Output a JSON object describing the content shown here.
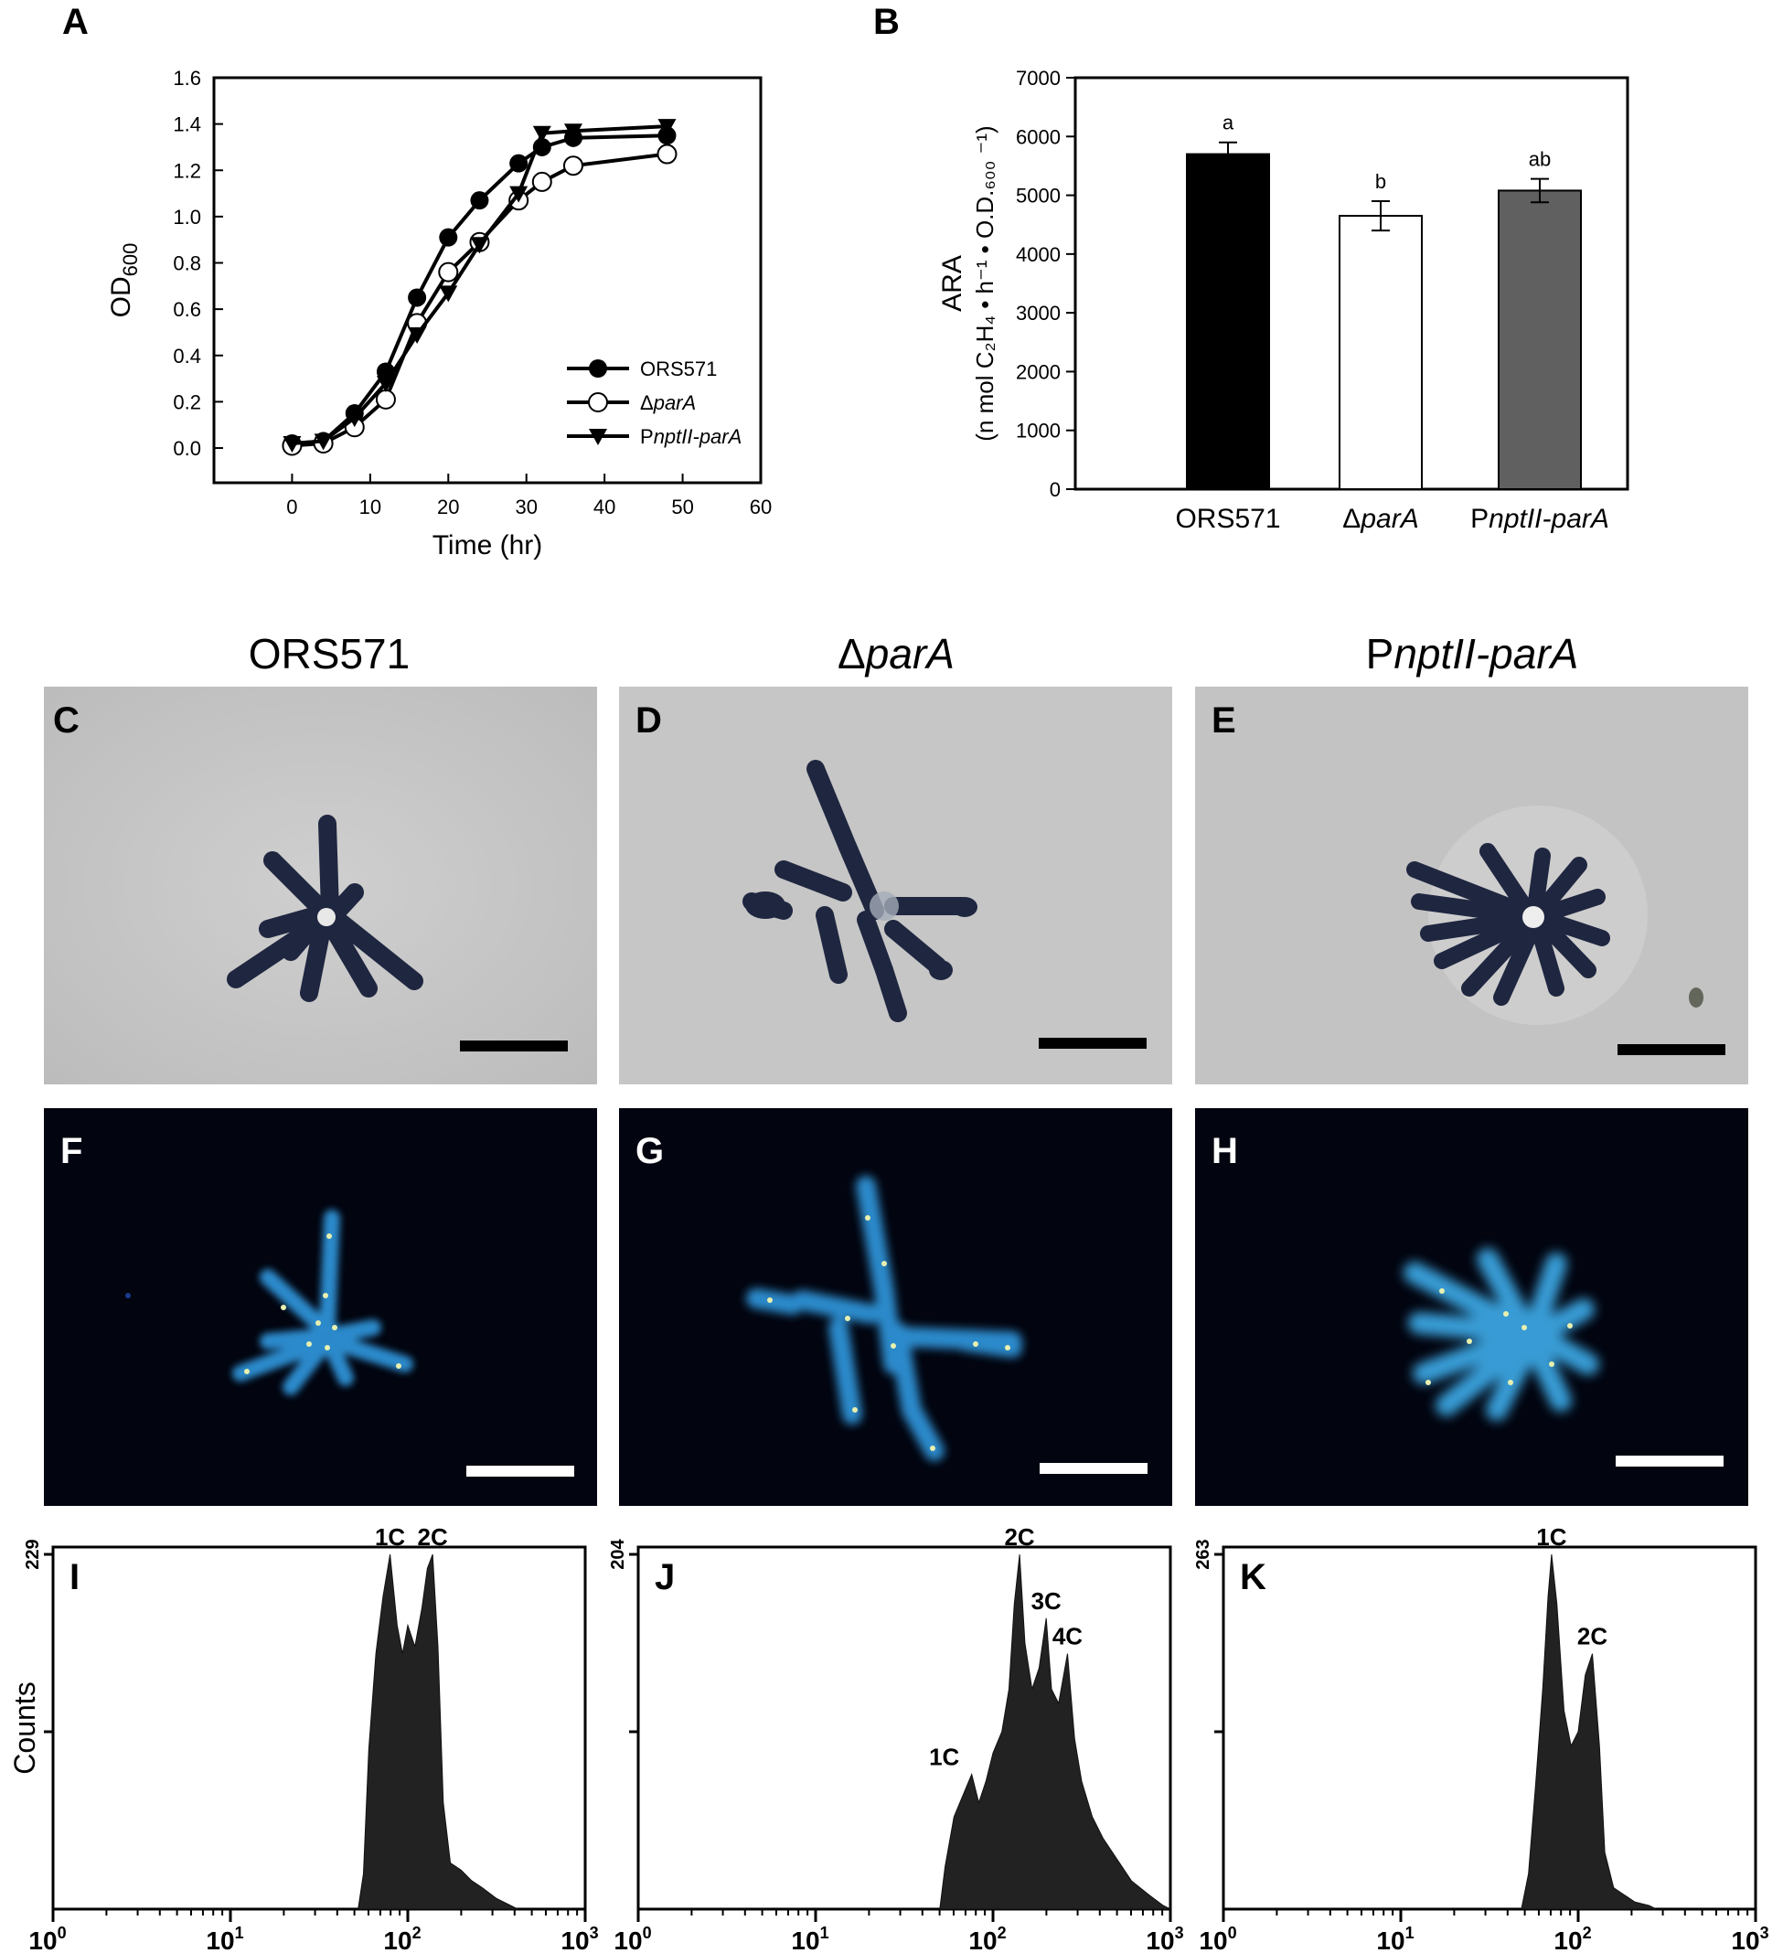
{
  "figure": {
    "panels": {
      "A": "A",
      "B": "B",
      "C": "C",
      "D": "D",
      "E": "E",
      "F": "F",
      "G": "G",
      "H": "H",
      "I": "I",
      "J": "J",
      "K": "K"
    },
    "column_titles": [
      {
        "plain": "ORS571",
        "prefix": "",
        "italic": ""
      },
      {
        "plain": "",
        "prefix": "Δ",
        "italic": "parA"
      },
      {
        "plain": "",
        "prefix": "P",
        "italic": "nptII-parA"
      }
    ],
    "colors": {
      "brightfield_bg": "#c4c4c4",
      "fluorescence_bg": "#02040f",
      "cell_dark": "#202742",
      "cell_fluor": "#3aa4e0",
      "histogram_fill": "#222222"
    }
  },
  "chart_data": [
    {
      "id": "A",
      "type": "line",
      "title": "",
      "xlabel": "Time (hr)",
      "ylabel_main": "OD",
      "ylabel_sub": "600",
      "xlim": [
        -10,
        60
      ],
      "ylim": [
        -0.15,
        1.6
      ],
      "xticks": [
        0,
        10,
        20,
        30,
        40,
        50,
        60
      ],
      "yticks": [
        "0.0",
        "0.2",
        "0.4",
        "0.6",
        "0.8",
        "1.0",
        "1.2",
        "1.4",
        "1.6"
      ],
      "series": [
        {
          "name": "ORS571",
          "name_prefix": "",
          "name_italic": "",
          "marker": "circle-filled",
          "x": [
            0,
            4,
            8,
            12,
            16,
            20,
            24,
            29,
            32,
            36,
            48
          ],
          "y": [
            0.02,
            0.03,
            0.15,
            0.33,
            0.65,
            0.91,
            1.07,
            1.23,
            1.3,
            1.34,
            1.35
          ],
          "err": [
            0.01,
            0.01,
            0.02,
            0.02,
            0.02,
            0.03,
            0.03,
            0.03,
            0.03,
            0.03,
            0.03
          ]
        },
        {
          "name": "",
          "name_prefix": "Δ",
          "name_italic": "parA",
          "marker": "circle-open",
          "x": [
            0,
            4,
            8,
            12,
            16,
            20,
            24,
            29,
            32,
            36,
            48
          ],
          "y": [
            0.01,
            0.02,
            0.09,
            0.21,
            0.54,
            0.76,
            0.89,
            1.07,
            1.15,
            1.22,
            1.27
          ],
          "err": [
            0.01,
            0.01,
            0.02,
            0.02,
            0.02,
            0.03,
            0.03,
            0.03,
            0.02,
            0.03,
            0.03
          ]
        },
        {
          "name": "",
          "name_prefix": "P",
          "name_italic": "nptII-parA",
          "marker": "triangle-down",
          "x": [
            0,
            4,
            8,
            12,
            16,
            20,
            24,
            29,
            32,
            36,
            48
          ],
          "y": [
            0.02,
            0.03,
            0.13,
            0.28,
            0.49,
            0.67,
            0.88,
            1.1,
            1.36,
            1.37,
            1.39
          ],
          "err": [
            0.01,
            0.01,
            0.02,
            0.02,
            0.02,
            0.02,
            0.03,
            0.03,
            0.03,
            0.02,
            0.02
          ]
        }
      ],
      "legend_placement": "bottom-right"
    },
    {
      "id": "B",
      "type": "bar",
      "title": "",
      "ylabel_line1": "ARA",
      "ylabel_line2": "(n mol C₂H₄ • h⁻¹ • O.D.₆₀₀ ⁻¹)",
      "ylim": [
        0,
        7000
      ],
      "yticks": [
        "0",
        "1000",
        "2000",
        "3000",
        "4000",
        "5000",
        "6000",
        "7000"
      ],
      "categories": [
        {
          "plain": "ORS571",
          "prefix": "",
          "italic": ""
        },
        {
          "plain": "",
          "prefix": "Δ",
          "italic": "parA"
        },
        {
          "plain": "",
          "prefix": "P",
          "italic": "nptII-parA"
        }
      ],
      "values": [
        5700,
        4650,
        5080
      ],
      "errors": [
        200,
        250,
        200
      ],
      "significance": [
        "a",
        "b",
        "ab"
      ],
      "colors": [
        "#000000",
        "#ffffff",
        "#606060"
      ]
    },
    {
      "id": "I",
      "type": "area",
      "ylabel": "Counts",
      "ymax_label": "229",
      "xscale": "log",
      "xticks": [
        {
          "base": "10",
          "exp": "0"
        },
        {
          "base": "10",
          "exp": "1"
        },
        {
          "base": "10",
          "exp": "2"
        },
        {
          "base": "10",
          "exp": "3"
        }
      ],
      "peaks": [
        {
          "label": "1C",
          "log_x": 1.9
        },
        {
          "label": "2C",
          "log_x": 2.14
        }
      ],
      "profile": [
        [
          1.72,
          0
        ],
        [
          1.75,
          0.1
        ],
        [
          1.78,
          0.45
        ],
        [
          1.82,
          0.72
        ],
        [
          1.86,
          0.88
        ],
        [
          1.9,
          1.0
        ],
        [
          1.94,
          0.8
        ],
        [
          1.97,
          0.72
        ],
        [
          2.0,
          0.8
        ],
        [
          2.04,
          0.74
        ],
        [
          2.08,
          0.85
        ],
        [
          2.11,
          0.96
        ],
        [
          2.14,
          1.0
        ],
        [
          2.17,
          0.74
        ],
        [
          2.2,
          0.3
        ],
        [
          2.24,
          0.13
        ],
        [
          2.3,
          0.11
        ],
        [
          2.36,
          0.08
        ],
        [
          2.42,
          0.06
        ],
        [
          2.5,
          0.03
        ],
        [
          2.58,
          0.01
        ],
        [
          2.62,
          0
        ]
      ]
    },
    {
      "id": "J",
      "type": "area",
      "ylabel": "",
      "ymax_label": "204",
      "xscale": "log",
      "xticks": [
        {
          "base": "10",
          "exp": "0"
        },
        {
          "base": "10",
          "exp": "1"
        },
        {
          "base": "10",
          "exp": "2"
        },
        {
          "base": "10",
          "exp": "3"
        }
      ],
      "peaks": [
        {
          "label": "1C",
          "log_x": 1.88
        },
        {
          "label": "2C",
          "log_x": 2.15
        },
        {
          "label": "3C",
          "log_x": 2.3
        },
        {
          "label": "4C",
          "log_x": 2.42
        }
      ],
      "profile": [
        [
          1.7,
          0
        ],
        [
          1.73,
          0.12
        ],
        [
          1.78,
          0.26
        ],
        [
          1.83,
          0.32
        ],
        [
          1.88,
          0.38
        ],
        [
          1.92,
          0.3
        ],
        [
          1.96,
          0.36
        ],
        [
          2.0,
          0.44
        ],
        [
          2.05,
          0.5
        ],
        [
          2.09,
          0.62
        ],
        [
          2.12,
          0.86
        ],
        [
          2.15,
          1.0
        ],
        [
          2.18,
          0.75
        ],
        [
          2.22,
          0.62
        ],
        [
          2.26,
          0.68
        ],
        [
          2.3,
          0.82
        ],
        [
          2.33,
          0.62
        ],
        [
          2.37,
          0.58
        ],
        [
          2.42,
          0.72
        ],
        [
          2.46,
          0.48
        ],
        [
          2.5,
          0.36
        ],
        [
          2.56,
          0.26
        ],
        [
          2.62,
          0.2
        ],
        [
          2.7,
          0.14
        ],
        [
          2.78,
          0.08
        ],
        [
          2.88,
          0.04
        ],
        [
          2.96,
          0.01
        ],
        [
          3.0,
          0
        ]
      ]
    },
    {
      "id": "K",
      "type": "area",
      "ylabel": "",
      "ymax_label": "263",
      "xscale": "log",
      "xticks": [
        {
          "base": "10",
          "exp": "0"
        },
        {
          "base": "10",
          "exp": "1"
        },
        {
          "base": "10",
          "exp": "2"
        },
        {
          "base": "10",
          "exp": "3"
        }
      ],
      "peaks": [
        {
          "label": "1C",
          "log_x": 1.85
        },
        {
          "label": "2C",
          "log_x": 2.08
        }
      ],
      "profile": [
        [
          1.68,
          0
        ],
        [
          1.72,
          0.1
        ],
        [
          1.76,
          0.35
        ],
        [
          1.8,
          0.62
        ],
        [
          1.83,
          0.88
        ],
        [
          1.85,
          1.0
        ],
        [
          1.88,
          0.86
        ],
        [
          1.92,
          0.56
        ],
        [
          1.96,
          0.46
        ],
        [
          2.0,
          0.5
        ],
        [
          2.04,
          0.66
        ],
        [
          2.08,
          0.72
        ],
        [
          2.12,
          0.46
        ],
        [
          2.15,
          0.16
        ],
        [
          2.2,
          0.06
        ],
        [
          2.26,
          0.04
        ],
        [
          2.32,
          0.02
        ],
        [
          2.4,
          0.01
        ],
        [
          2.44,
          0
        ]
      ]
    }
  ]
}
